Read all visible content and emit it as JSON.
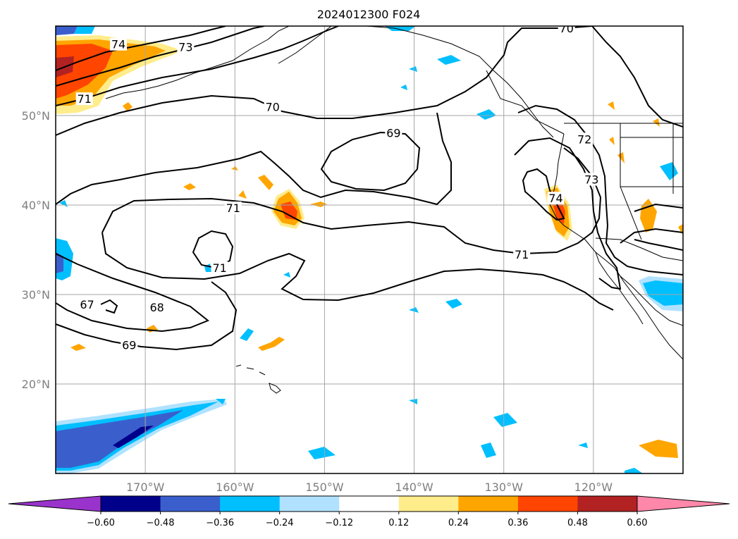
{
  "title": "2024012300 F024",
  "map": {
    "lat_range": [
      10,
      60
    ],
    "lon_range": [
      -180,
      -110
    ],
    "lat_ticks": [
      {
        "value": 20,
        "label": "20°N"
      },
      {
        "value": 30,
        "label": "30°N"
      },
      {
        "value": 40,
        "label": "40°N"
      },
      {
        "value": 50,
        "label": "50°N"
      }
    ],
    "lon_ticks": [
      {
        "value": -170,
        "label": "170°W"
      },
      {
        "value": -160,
        "label": "160°W"
      },
      {
        "value": -150,
        "label": "150°W"
      },
      {
        "value": -140,
        "label": "140°W"
      },
      {
        "value": -130,
        "label": "130°W"
      },
      {
        "value": -120,
        "label": "120°W"
      }
    ],
    "grid": true,
    "contour_labels": [
      {
        "text": "74",
        "lon": -173,
        "lat": 57.9
      },
      {
        "text": "73",
        "lon": -165.5,
        "lat": 57.6
      },
      {
        "text": "71",
        "lon": -176.8,
        "lat": 51.8
      },
      {
        "text": "70",
        "lon": -155.8,
        "lat": 50.9
      },
      {
        "text": "69",
        "lon": -142.3,
        "lat": 48.0
      },
      {
        "text": "71",
        "lon": -160.2,
        "lat": 39.6
      },
      {
        "text": "71",
        "lon": -161.7,
        "lat": 32.9
      },
      {
        "text": "67",
        "lon": -176.5,
        "lat": 28.8
      },
      {
        "text": "68",
        "lon": -168.7,
        "lat": 28.5
      },
      {
        "text": "69",
        "lon": -171.8,
        "lat": 24.3
      },
      {
        "text": "74",
        "lon": -124.2,
        "lat": 40.7
      },
      {
        "text": "73",
        "lon": -120.2,
        "lat": 42.8
      },
      {
        "text": "72",
        "lon": -121.0,
        "lat": 47.3
      },
      {
        "text": "71",
        "lon": -128.0,
        "lat": 34.4
      },
      {
        "text": "70",
        "lon": -123.0,
        "lat": 59.7
      }
    ]
  },
  "colorbar": {
    "extend": "both",
    "levels": [
      -0.6,
      -0.48,
      -0.36,
      -0.24,
      -0.12,
      0.12,
      0.24,
      0.36,
      0.48,
      0.6
    ],
    "tick_labels": [
      "−0.60",
      "−0.48",
      "−0.36",
      "−0.24",
      "−0.12",
      "0.12",
      "0.24",
      "0.36",
      "0.48",
      "0.60"
    ],
    "colors": [
      "#9933cc",
      "#00008b",
      "#3a5fcd",
      "#00bfff",
      "#b0e2ff",
      "#ffffff",
      "#ffec8b",
      "#ffa500",
      "#ff4500",
      "#b22222",
      "#ff88aa"
    ]
  }
}
